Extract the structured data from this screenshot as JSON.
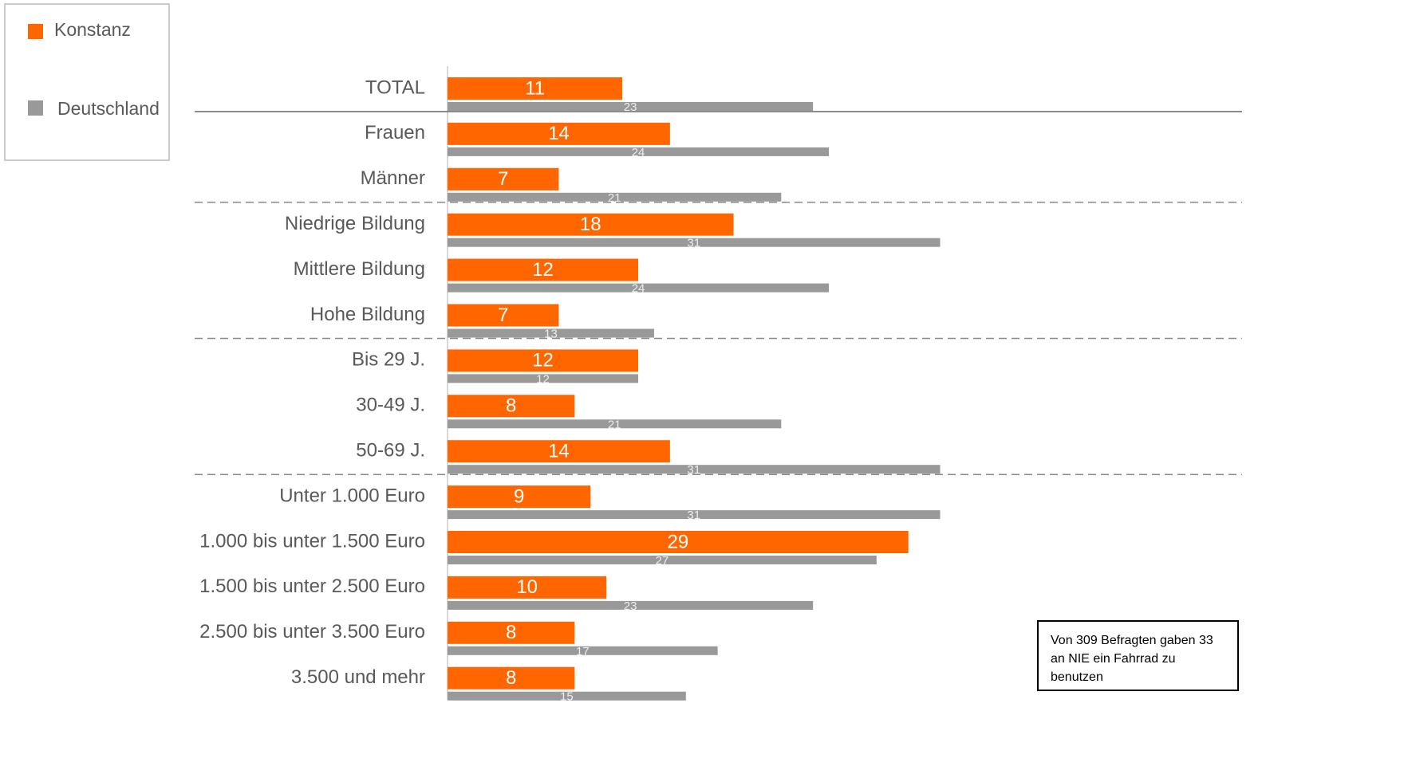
{
  "chart_data": {
    "type": "bar",
    "orientation": "horizontal",
    "categories": [
      "TOTAL",
      "Frauen",
      "Männer",
      "Niedrige Bildung",
      "Mittlere Bildung",
      "Hohe Bildung",
      "Bis 29 J.",
      "30-49 J.",
      "50-69 J.",
      "Unter 1.000 Euro",
      "1.000 bis unter 1.500 Euro",
      "1.500 bis unter 2.500 Euro",
      "2.500 bis unter 3.500 Euro",
      "3.500 und mehr"
    ],
    "series": [
      {
        "name": "Konstanz",
        "color": "#ff6600",
        "values": [
          11,
          14,
          7,
          18,
          12,
          7,
          12,
          8,
          14,
          9,
          29,
          10,
          8,
          8
        ]
      },
      {
        "name": "Deutschland",
        "color": "#999999",
        "values": [
          23,
          24,
          21,
          31,
          24,
          13,
          12,
          21,
          31,
          31,
          27,
          23,
          17,
          15
        ]
      }
    ],
    "xlim": [
      0,
      50
    ],
    "legend": "top-left",
    "note": "Von 309 Befragten gaben 33 an NIE ein Fahrrad zu benutzen"
  }
}
